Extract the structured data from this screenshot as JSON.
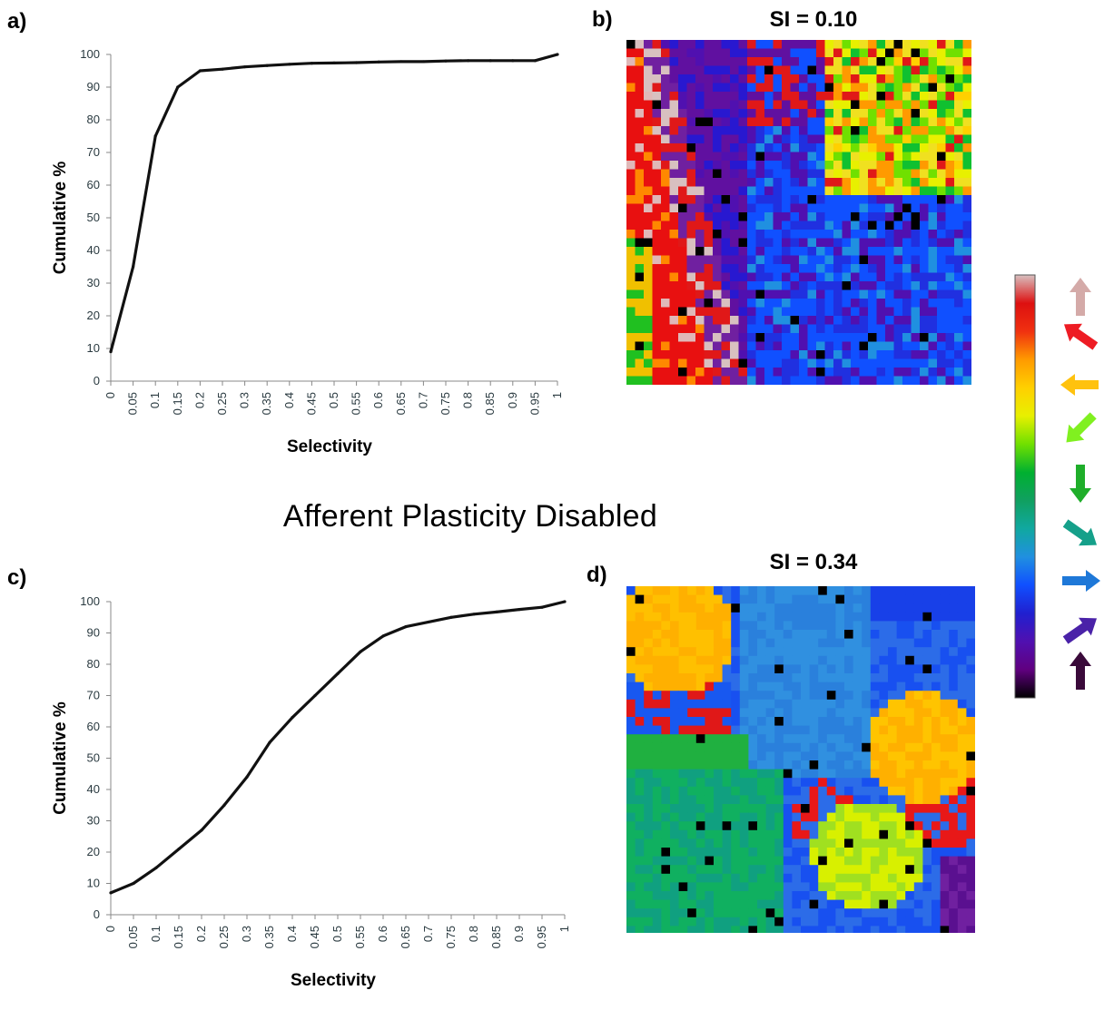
{
  "labels": {
    "a": "a)",
    "b": "b)",
    "c": "c)",
    "d": "d)"
  },
  "section_title": "Afferent Plasticity Disabled",
  "map_b": {
    "title": "SI = 0.10"
  },
  "map_d": {
    "title": "SI = 0.34"
  },
  "colorbar": {
    "stops": [
      "#d8c0c0",
      "#dd1010",
      "#f03010",
      "#ff9a00",
      "#ffd000",
      "#e8f000",
      "#70e000",
      "#00b030",
      "#10a060",
      "#10a8a0",
      "#2090e0",
      "#1050ff",
      "#2020d0",
      "#5010b0",
      "#600080",
      "#000000"
    ],
    "arrows": [
      {
        "icon": "up-arrow-icon",
        "color": "#d4aaa8"
      },
      {
        "icon": "up-left-arrow-icon",
        "color": "#ee1c24"
      },
      {
        "icon": "left-arrow-icon",
        "color": "#ffc20e"
      },
      {
        "icon": "down-left-arrow-icon",
        "color": "#80f020"
      },
      {
        "icon": "down-arrow-icon",
        "color": "#1fae2a"
      },
      {
        "icon": "down-right-arrow-icon",
        "color": "#15a08a"
      },
      {
        "icon": "right-arrow-icon",
        "color": "#1e78d8"
      },
      {
        "icon": "up-right-arrow-icon",
        "color": "#4a22a8"
      },
      {
        "icon": "up-arrow-dark-icon",
        "color": "#3a0a3a"
      }
    ]
  },
  "chart_data": [
    {
      "type": "line",
      "panel": "a",
      "xlabel": "Selectivity",
      "ylabel": "Cumulative %",
      "xticks": [
        "0",
        "0.05",
        "0.1",
        "0.15",
        "0.2",
        "0.25",
        "0.3",
        "0.35",
        "0.4",
        "0.45",
        "0.5",
        "0.55",
        "0.6",
        "0.65",
        "0.7",
        "0.75",
        "0.8",
        "0.85",
        "0.9",
        "0.95",
        "1"
      ],
      "yticks": [
        "0",
        "10",
        "20",
        "30",
        "40",
        "50",
        "60",
        "70",
        "80",
        "90",
        "100"
      ],
      "xlim": [
        0,
        1
      ],
      "ylim": [
        0,
        100
      ],
      "x": [
        0,
        0.05,
        0.1,
        0.15,
        0.2,
        0.25,
        0.3,
        0.35,
        0.4,
        0.45,
        0.5,
        0.55,
        0.6,
        0.65,
        0.7,
        0.75,
        0.8,
        0.85,
        0.9,
        0.95,
        1
      ],
      "y": [
        9,
        35,
        75,
        90,
        95,
        95.5,
        96.2,
        96.6,
        97,
        97.3,
        97.4,
        97.5,
        97.7,
        97.8,
        97.8,
        98,
        98.1,
        98.1,
        98.1,
        98.1,
        100
      ]
    },
    {
      "type": "line",
      "panel": "c",
      "xlabel": "Selectivity",
      "ylabel": "Cumulative %",
      "xticks": [
        "0",
        "0.05",
        "0.1",
        "0.15",
        "0.2",
        "0.25",
        "0.3",
        "0.35",
        "0.4",
        "0.45",
        "0.5",
        "0.55",
        "0.6",
        "0.65",
        "0.7",
        "0.75",
        "0.8",
        "0.85",
        "0.9",
        "0.95",
        "1"
      ],
      "yticks": [
        "0",
        "10",
        "20",
        "30",
        "40",
        "50",
        "60",
        "70",
        "80",
        "90",
        "100"
      ],
      "xlim": [
        0,
        1
      ],
      "ylim": [
        0,
        100
      ],
      "x": [
        0,
        0.05,
        0.1,
        0.15,
        0.2,
        0.25,
        0.3,
        0.35,
        0.4,
        0.45,
        0.5,
        0.55,
        0.6,
        0.65,
        0.7,
        0.75,
        0.8,
        0.85,
        0.9,
        0.95,
        1
      ],
      "y": [
        7,
        10,
        15,
        21,
        27,
        35,
        44,
        55,
        63,
        70,
        77,
        84,
        89,
        92,
        93.5,
        95,
        96,
        96.7,
        97.5,
        98.2,
        100
      ]
    }
  ]
}
